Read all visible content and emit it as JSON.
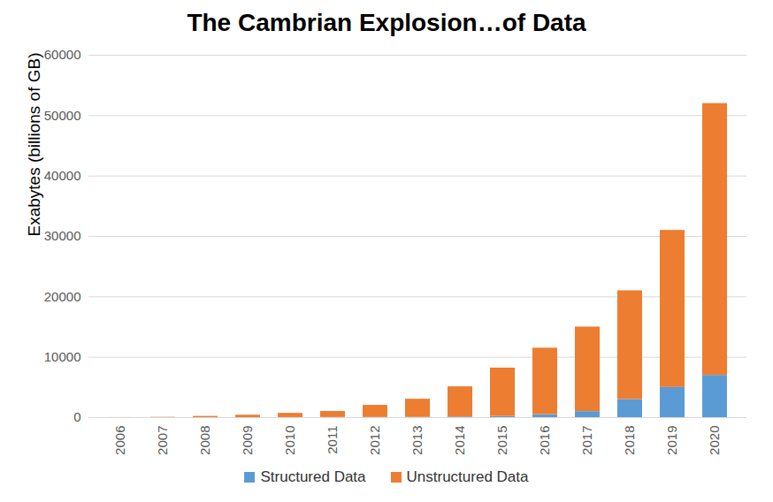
{
  "chart_data": {
    "type": "bar",
    "title": "The Cambrian Explosion…of Data",
    "y_label": "Exabytes (billions of GB)",
    "categories": [
      "2006",
      "2007",
      "2008",
      "2009",
      "2010",
      "2011",
      "2012",
      "2013",
      "2014",
      "2015",
      "2016",
      "2017",
      "2018",
      "2019",
      "2020"
    ],
    "series": [
      {
        "name": "Structured Data",
        "color": "#5b9bd5",
        "values": [
          0,
          0,
          0,
          0,
          10,
          20,
          30,
          50,
          100,
          200,
          500,
          1000,
          3000,
          5000,
          7000
        ]
      },
      {
        "name": "Unstructured Data",
        "color": "#ed7d31",
        "values": [
          10,
          50,
          200,
          400,
          700,
          1000,
          2000,
          3000,
          5000,
          8000,
          11000,
          14000,
          18000,
          26000,
          45000
        ]
      }
    ],
    "stacked": true,
    "ylim": [
      0,
      60000
    ],
    "yticks": [
      0,
      10000,
      20000,
      30000,
      40000,
      50000,
      60000
    ],
    "grid": true,
    "legend": "bottom"
  }
}
